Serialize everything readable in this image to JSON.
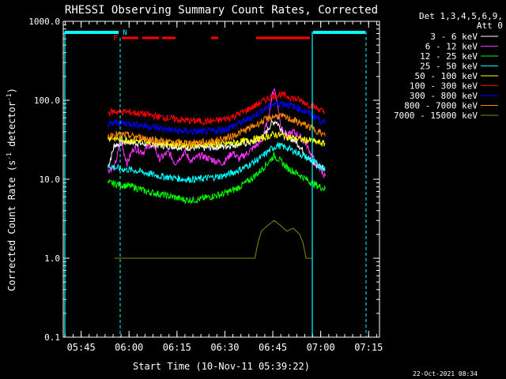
{
  "chart_data": {
    "type": "line",
    "title": "RHESSI Observing Summary Count Rates, Corrected",
    "xlabel": "Start Time (10-Nov-11 05:39:22)",
    "ylabel": "Corrected Count Rate (s⁻¹ detector⁻¹)",
    "ylabel_main": "Corrected Count Rate (s",
    "ylabel_sup1": "-1",
    "ylabel_mid": " detector",
    "ylabel_sup2": "-1",
    "ylabel_end": ")",
    "y_scale": "log",
    "ylim": [
      0.1,
      1000
    ],
    "y_ticks": [
      {
        "value": 0.1,
        "label": "0.1"
      },
      {
        "value": 1,
        "label": "1.0"
      },
      {
        "value": 10,
        "label": "10.0"
      },
      {
        "value": 100,
        "label": "100.0"
      },
      {
        "value": 1000,
        "label": "1000.0"
      }
    ],
    "xlim_minutes": [
      0,
      99
    ],
    "x_ticks": [
      {
        "minute": 5.6,
        "label": "05:45"
      },
      {
        "minute": 20.6,
        "label": "06:00"
      },
      {
        "minute": 35.6,
        "label": "06:15"
      },
      {
        "minute": 50.6,
        "label": "06:30"
      },
      {
        "minute": 65.6,
        "label": "06:45"
      },
      {
        "minute": 80.6,
        "label": "07:00"
      },
      {
        "minute": 95.6,
        "label": "07:15"
      }
    ],
    "legend": {
      "header1": "Det 1,3,4,5,6,9,",
      "header2": "Att 0",
      "placement": "right"
    },
    "series": [
      {
        "name": "3 - 6 keV",
        "color": "#ffffff",
        "values": [
          [
            14,
            14
          ],
          [
            16,
            27
          ],
          [
            20,
            30
          ],
          [
            25,
            28
          ],
          [
            30,
            27
          ],
          [
            35,
            26
          ],
          [
            40,
            25
          ],
          [
            45,
            25
          ],
          [
            50,
            26
          ],
          [
            55,
            28
          ],
          [
            60,
            30
          ],
          [
            63,
            36
          ],
          [
            65,
            50
          ],
          [
            66.5,
            55
          ],
          [
            68,
            45
          ],
          [
            70,
            35
          ],
          [
            73,
            30
          ],
          [
            76,
            20
          ],
          [
            79,
            15
          ],
          [
            82,
            14
          ]
        ]
      },
      {
        "name": "6 - 12 keV",
        "color": "#ff33ff",
        "values": [
          [
            14,
            13
          ],
          [
            16,
            14
          ],
          [
            18,
            30
          ],
          [
            20,
            16
          ],
          [
            22,
            25
          ],
          [
            25,
            22
          ],
          [
            28,
            30
          ],
          [
            30,
            18
          ],
          [
            33,
            22
          ],
          [
            35,
            16
          ],
          [
            38,
            22
          ],
          [
            40,
            17
          ],
          [
            43,
            20
          ],
          [
            46,
            18
          ],
          [
            50,
            16
          ],
          [
            53,
            22
          ],
          [
            55,
            18
          ],
          [
            58,
            22
          ],
          [
            60,
            26
          ],
          [
            62,
            30
          ],
          [
            64,
            55
          ],
          [
            65.5,
            120
          ],
          [
            66,
            145
          ],
          [
            67,
            95
          ],
          [
            68,
            50
          ],
          [
            70,
            35
          ],
          [
            72,
            40
          ],
          [
            74,
            35
          ],
          [
            76,
            28
          ],
          [
            79,
            16
          ],
          [
            82,
            11
          ]
        ]
      },
      {
        "name": "12 - 25 keV",
        "color": "#00ff00",
        "values": [
          [
            14,
            9
          ],
          [
            18,
            8.5
          ],
          [
            22,
            8
          ],
          [
            26,
            7
          ],
          [
            30,
            6.5
          ],
          [
            34,
            6
          ],
          [
            38,
            5.5
          ],
          [
            42,
            5.5
          ],
          [
            46,
            6
          ],
          [
            50,
            6.5
          ],
          [
            54,
            7.5
          ],
          [
            58,
            9.5
          ],
          [
            61,
            12
          ],
          [
            64,
            16
          ],
          [
            66,
            20
          ],
          [
            68,
            17
          ],
          [
            70,
            14
          ],
          [
            73,
            12
          ],
          [
            76,
            10
          ],
          [
            79,
            8.5
          ],
          [
            82,
            7.5
          ]
        ]
      },
      {
        "name": "25 - 50 keV",
        "color": "#00ffff",
        "values": [
          [
            14,
            15
          ],
          [
            18,
            13.5
          ],
          [
            22,
            13
          ],
          [
            26,
            12
          ],
          [
            30,
            11
          ],
          [
            34,
            10.5
          ],
          [
            38,
            10
          ],
          [
            42,
            10
          ],
          [
            46,
            10.5
          ],
          [
            50,
            11
          ],
          [
            54,
            12.5
          ],
          [
            58,
            15
          ],
          [
            62,
            19
          ],
          [
            65,
            24
          ],
          [
            67,
            27
          ],
          [
            70,
            25
          ],
          [
            73,
            22
          ],
          [
            76,
            19
          ],
          [
            79,
            16
          ],
          [
            82,
            13.5
          ]
        ]
      },
      {
        "name": "50 - 100 keV",
        "color": "#ffff00",
        "values": [
          [
            14,
            34
          ],
          [
            18,
            32
          ],
          [
            22,
            31
          ],
          [
            26,
            30
          ],
          [
            30,
            29
          ],
          [
            34,
            28
          ],
          [
            38,
            27.5
          ],
          [
            42,
            27.5
          ],
          [
            46,
            28
          ],
          [
            50,
            28
          ],
          [
            54,
            29
          ],
          [
            58,
            31
          ],
          [
            62,
            33
          ],
          [
            66,
            37
          ],
          [
            68,
            36
          ],
          [
            71,
            34
          ],
          [
            74,
            32
          ],
          [
            77,
            31
          ],
          [
            80,
            29
          ],
          [
            82,
            28
          ]
        ]
      },
      {
        "name": "100 - 300 keV",
        "color": "#ff0000",
        "values": [
          [
            14,
            70
          ],
          [
            16,
            72
          ],
          [
            20,
            71
          ],
          [
            24,
            68
          ],
          [
            28,
            64
          ],
          [
            32,
            60
          ],
          [
            36,
            57
          ],
          [
            40,
            55
          ],
          [
            44,
            54
          ],
          [
            48,
            55
          ],
          [
            52,
            60
          ],
          [
            56,
            70
          ],
          [
            60,
            85
          ],
          [
            63,
            100
          ],
          [
            66,
            115
          ],
          [
            68,
            118
          ],
          [
            71,
            110
          ],
          [
            74,
            100
          ],
          [
            77,
            88
          ],
          [
            80,
            78
          ],
          [
            82,
            68
          ]
        ]
      },
      {
        "name": "300 - 800 keV",
        "color": "#0000ff",
        "values": [
          [
            14,
            48
          ],
          [
            16,
            52
          ],
          [
            20,
            51
          ],
          [
            24,
            49
          ],
          [
            28,
            46
          ],
          [
            32,
            43
          ],
          [
            36,
            41
          ],
          [
            40,
            40
          ],
          [
            44,
            40
          ],
          [
            48,
            41
          ],
          [
            52,
            45
          ],
          [
            56,
            53
          ],
          [
            60,
            65
          ],
          [
            63,
            78
          ],
          [
            66,
            90
          ],
          [
            68,
            92
          ],
          [
            71,
            87
          ],
          [
            74,
            78
          ],
          [
            77,
            68
          ],
          [
            80,
            58
          ],
          [
            82,
            50
          ]
        ]
      },
      {
        "name": "800 - 7000 keV",
        "color": "#ff8800",
        "values": [
          [
            14,
            35
          ],
          [
            16,
            37
          ],
          [
            20,
            36
          ],
          [
            24,
            34
          ],
          [
            28,
            32
          ],
          [
            32,
            30
          ],
          [
            36,
            29
          ],
          [
            40,
            29
          ],
          [
            44,
            29.5
          ],
          [
            48,
            31
          ],
          [
            52,
            34
          ],
          [
            56,
            40
          ],
          [
            60,
            48
          ],
          [
            63,
            56
          ],
          [
            66,
            63
          ],
          [
            68,
            63
          ],
          [
            71,
            58
          ],
          [
            74,
            52
          ],
          [
            77,
            46
          ],
          [
            80,
            40
          ],
          [
            82,
            35
          ]
        ]
      },
      {
        "name": "7000 - 15000 keV",
        "color": "#888800",
        "values": [
          [
            16,
            1
          ],
          [
            22,
            1
          ],
          [
            60,
            1
          ],
          [
            61,
            1.6
          ],
          [
            62,
            2.2
          ],
          [
            64,
            2.6
          ],
          [
            66,
            3
          ],
          [
            68,
            2.6
          ],
          [
            70,
            2.2
          ],
          [
            72,
            2.4
          ],
          [
            74,
            2
          ],
          [
            75,
            1.6
          ],
          [
            76,
            1
          ],
          [
            78,
            1
          ]
        ]
      }
    ]
  }
}
